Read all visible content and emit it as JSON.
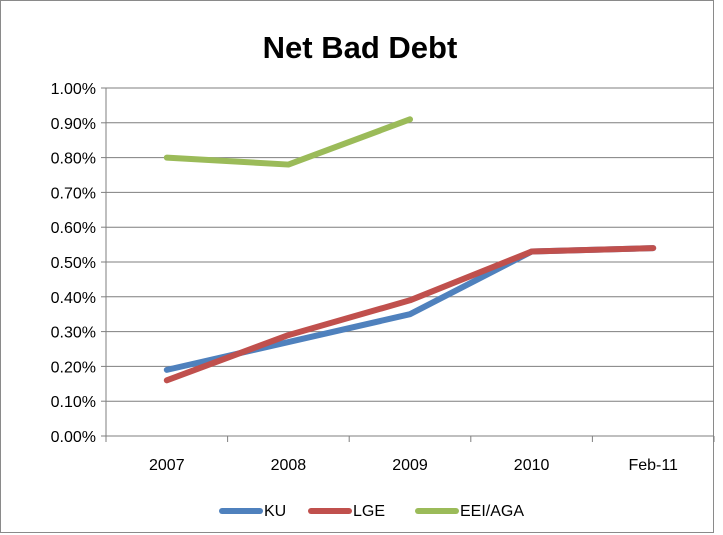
{
  "chart_data": {
    "type": "line",
    "title": "Net Bad Debt",
    "xlabel": "",
    "ylabel": "",
    "categories": [
      "2007",
      "2008",
      "2009",
      "2010",
      "Feb-11"
    ],
    "y_ticks": [
      "0.00%",
      "0.10%",
      "0.20%",
      "0.30%",
      "0.40%",
      "0.50%",
      "0.60%",
      "0.70%",
      "0.80%",
      "0.90%",
      "1.00%"
    ],
    "ylim": [
      0,
      1.0
    ],
    "grid": true,
    "legend_position": "bottom",
    "series": [
      {
        "name": "KU",
        "color": "#4f81bd",
        "values": [
          0.19,
          0.27,
          0.35,
          0.53,
          0.54
        ]
      },
      {
        "name": "LGE",
        "color": "#c0504d",
        "values": [
          0.16,
          0.29,
          0.39,
          0.53,
          0.54
        ]
      },
      {
        "name": "EEI/AGA",
        "color": "#9bbb59",
        "values": [
          0.8,
          0.78,
          0.91,
          null,
          null
        ]
      }
    ]
  }
}
